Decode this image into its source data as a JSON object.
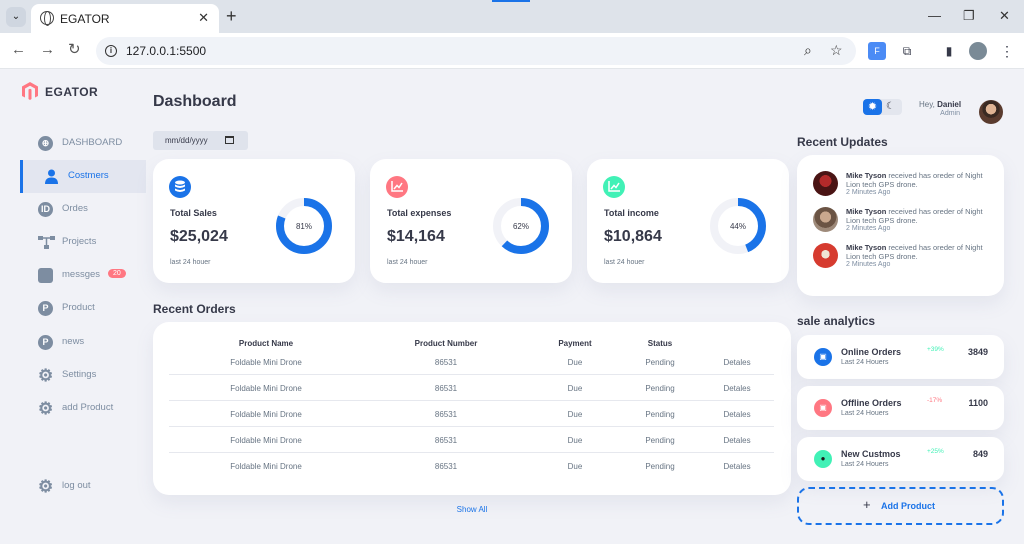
{
  "browser": {
    "tab_title": "EGATOR",
    "url": "127.0.0.1:5500"
  },
  "brand": {
    "name": "EGATOR",
    "color": "#ff7782"
  },
  "sidebar": {
    "items": [
      {
        "label": "DASHBOARD",
        "icon": "dashboard-icon"
      },
      {
        "label": "Costmers",
        "icon": "person-icon",
        "active": true
      },
      {
        "label": "Ordes",
        "icon": "id-icon",
        "glyph": "ID"
      },
      {
        "label": "Projects",
        "icon": "hierarchy-icon"
      },
      {
        "label": "messges",
        "icon": "message-icon",
        "badge": "20"
      },
      {
        "label": "Product",
        "icon": "product-icon",
        "glyph": "P"
      },
      {
        "label": "news",
        "icon": "news-icon",
        "glyph": "P"
      },
      {
        "label": "Settings",
        "icon": "gear-icon"
      },
      {
        "label": "add Product",
        "icon": "gear-icon"
      }
    ],
    "logout": "log out"
  },
  "main": {
    "title": "Dashboard",
    "date_placeholder": "mm/dd/yyyy",
    "cards": [
      {
        "title": "Total Sales",
        "value": "$25,024",
        "sub": "last 24 houer",
        "percent": 81,
        "percent_label": "81%",
        "icon_color": "#1a73e8"
      },
      {
        "title": "Total expenses",
        "value": "$14,164",
        "sub": "last 24 houer",
        "percent": 62,
        "percent_label": "62%",
        "icon_color": "#ff7782"
      },
      {
        "title": "Total income",
        "value": "$10,864",
        "sub": "last 24 houer",
        "percent": 44,
        "percent_label": "44%",
        "icon_color": "#41f1b6"
      }
    ],
    "recent_orders": {
      "title": "Recent Orders",
      "columns": [
        "Product Name",
        "Product Number",
        "Payment",
        "Status",
        ""
      ],
      "rows": [
        [
          "Foldable Mini Drone",
          "86531",
          "Due",
          "Pending",
          "Detales"
        ],
        [
          "Foldable Mini Drone",
          "86531",
          "Due",
          "Pending",
          "Detales"
        ],
        [
          "Foldable Mini Drone",
          "86531",
          "Due",
          "Pending",
          "Detales"
        ],
        [
          "Foldable Mini Drone",
          "86531",
          "Due",
          "Pending",
          "Detales"
        ],
        [
          "Foldable Mini Drone",
          "86531",
          "Due",
          "Pending",
          "Detales"
        ]
      ],
      "show_all": "Show All"
    }
  },
  "right": {
    "greeting": "Hey,",
    "user_name": "Daniel",
    "role": "Admin",
    "updates_title": "Recent Updates",
    "updates": [
      {
        "name": "Mike Tyson",
        "text": "received has oreder of Night Lion tech GPS drone.",
        "time": "2 Minutes Ago"
      },
      {
        "name": "Mike Tyson",
        "text": "received has oreder of Night Lion tech GPS drone.",
        "time": "2 Minutes Ago"
      },
      {
        "name": "Mike Tyson",
        "text": "received has oreder of Night Lion tech GPS drone.",
        "time": "2 Minutes Ago"
      }
    ],
    "analytics_title": "sale analytics",
    "analytics": [
      {
        "title": "Online Orders",
        "sub": "Last 24 Houers",
        "pct": "+39%",
        "pct_color": "#41f1b6",
        "value": "3849",
        "icon_color": "#1a73e8"
      },
      {
        "title": "Offline Orders",
        "sub": "Last 24 Houers",
        "pct": "-17%",
        "pct_color": "#ff7782",
        "value": "1100",
        "icon_color": "#ff7782"
      },
      {
        "title": "New Custmos",
        "sub": "Last 24 Houers",
        "pct": "+25%",
        "pct_color": "#41f1b6",
        "value": "849",
        "icon_color": "#41f1b6"
      }
    ],
    "add_product": "Add Product"
  }
}
